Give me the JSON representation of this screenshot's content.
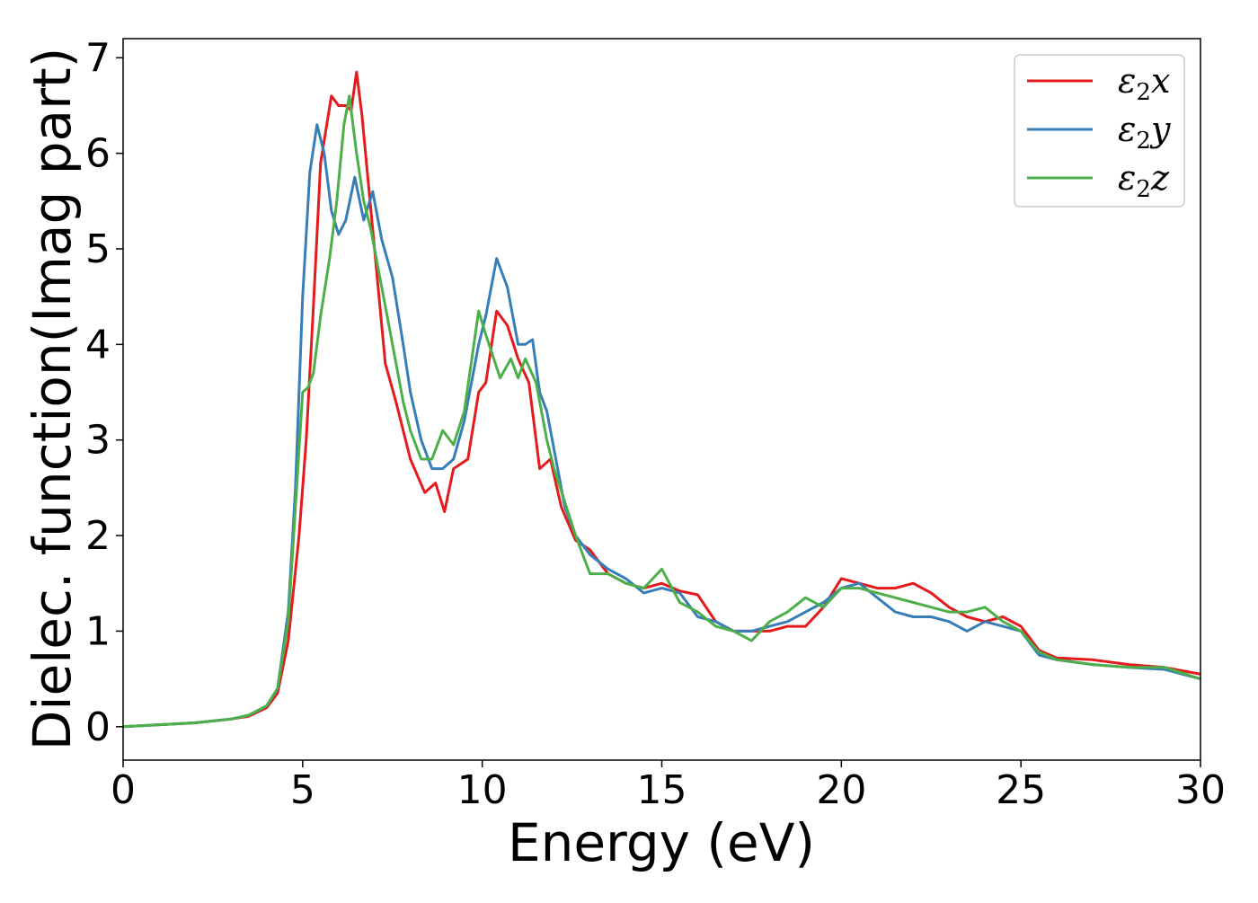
{
  "chart_data": {
    "type": "line",
    "title": "",
    "xlabel": "Energy (eV)",
    "ylabel": "Dielec. function(Imag part)",
    "xlim": [
      0,
      30
    ],
    "ylim": [
      -0.35,
      7.2
    ],
    "xticks": [
      0,
      5,
      10,
      15,
      20,
      25,
      30
    ],
    "xtick_labels": [
      "0",
      "5",
      "10",
      "15",
      "20",
      "25",
      "30"
    ],
    "yticks": [
      0,
      1,
      2,
      3,
      4,
      5,
      6,
      7
    ],
    "ytick_labels": [
      "0",
      "1",
      "2",
      "3",
      "4",
      "5",
      "6",
      "7"
    ],
    "grid": false,
    "legend_position": "top-right",
    "series": [
      {
        "name": "ε₂x",
        "legend_base": "ε",
        "legend_sub": "2",
        "legend_suffix": "x",
        "color": "#e41a1c",
        "x": [
          0,
          1,
          2,
          3,
          3.5,
          4,
          4.3,
          4.6,
          4.9,
          5.1,
          5.3,
          5.5,
          5.8,
          6.0,
          6.2,
          6.35,
          6.5,
          6.65,
          6.8,
          7.0,
          7.3,
          7.6,
          8.0,
          8.4,
          8.7,
          8.95,
          9.2,
          9.6,
          9.9,
          10.1,
          10.4,
          10.7,
          11.0,
          11.3,
          11.6,
          11.9,
          12.2,
          12.6,
          13.0,
          13.5,
          14.0,
          14.5,
          15.0,
          15.5,
          16.0,
          16.5,
          17.0,
          17.5,
          18.0,
          18.5,
          19.0,
          19.5,
          20.0,
          20.5,
          21.0,
          21.5,
          22.0,
          22.5,
          23.0,
          23.5,
          24.0,
          24.5,
          25.0,
          25.5,
          26.0,
          27.0,
          28.0,
          29.0,
          30.0
        ],
        "y": [
          0.0,
          0.02,
          0.04,
          0.08,
          0.11,
          0.2,
          0.35,
          0.9,
          2.0,
          3.0,
          4.4,
          5.9,
          6.6,
          6.5,
          6.5,
          6.45,
          6.85,
          6.4,
          5.8,
          5.0,
          3.8,
          3.4,
          2.8,
          2.45,
          2.55,
          2.25,
          2.7,
          2.8,
          3.5,
          3.6,
          4.35,
          4.2,
          3.85,
          3.6,
          2.7,
          2.8,
          2.3,
          1.95,
          1.85,
          1.6,
          1.5,
          1.45,
          1.5,
          1.42,
          1.38,
          1.1,
          1.0,
          1.0,
          1.0,
          1.05,
          1.05,
          1.25,
          1.55,
          1.5,
          1.45,
          1.45,
          1.5,
          1.4,
          1.25,
          1.15,
          1.1,
          1.15,
          1.05,
          0.8,
          0.72,
          0.7,
          0.65,
          0.62,
          0.55
        ]
      },
      {
        "name": "ε₂y",
        "legend_base": "ε",
        "legend_sub": "2",
        "legend_suffix": "y",
        "color": "#377eb8",
        "x": [
          0,
          1,
          2,
          3,
          3.5,
          4,
          4.3,
          4.6,
          4.8,
          5.0,
          5.2,
          5.4,
          5.6,
          5.8,
          6.0,
          6.2,
          6.45,
          6.7,
          6.95,
          7.2,
          7.5,
          7.8,
          8.0,
          8.3,
          8.6,
          8.9,
          9.2,
          9.5,
          9.9,
          10.1,
          10.4,
          10.7,
          11.0,
          11.2,
          11.4,
          11.6,
          11.8,
          12.0,
          12.3,
          12.6,
          13.0,
          13.5,
          14.0,
          14.5,
          15.0,
          15.5,
          16.0,
          16.5,
          17.0,
          17.5,
          18.0,
          18.5,
          19.0,
          19.5,
          20.0,
          20.5,
          21.0,
          21.5,
          22.0,
          22.5,
          23.0,
          23.5,
          24.0,
          24.5,
          25.0,
          25.5,
          26.0,
          27.0,
          28.0,
          29.0,
          30.0
        ],
        "y": [
          0.0,
          0.02,
          0.04,
          0.08,
          0.12,
          0.22,
          0.4,
          1.2,
          2.5,
          4.5,
          5.8,
          6.3,
          6.0,
          5.4,
          5.15,
          5.3,
          5.75,
          5.3,
          5.6,
          5.1,
          4.7,
          4.0,
          3.5,
          3.0,
          2.7,
          2.7,
          2.8,
          3.2,
          4.0,
          4.3,
          4.9,
          4.6,
          4.0,
          4.0,
          4.05,
          3.5,
          3.3,
          2.9,
          2.3,
          2.0,
          1.8,
          1.65,
          1.55,
          1.4,
          1.45,
          1.4,
          1.15,
          1.1,
          1.0,
          1.0,
          1.05,
          1.1,
          1.2,
          1.3,
          1.45,
          1.5,
          1.35,
          1.2,
          1.15,
          1.15,
          1.1,
          1.0,
          1.1,
          1.05,
          1.0,
          0.75,
          0.7,
          0.65,
          0.62,
          0.6,
          0.5
        ]
      },
      {
        "name": "ε₂z",
        "legend_base": "ε",
        "legend_sub": "2",
        "legend_suffix": "z",
        "color": "#4daf4a",
        "x": [
          0,
          1,
          2,
          3,
          3.5,
          4,
          4.3,
          4.6,
          4.8,
          5.0,
          5.15,
          5.3,
          5.5,
          5.75,
          5.95,
          6.15,
          6.3,
          6.5,
          6.7,
          6.9,
          7.2,
          7.5,
          7.8,
          8.0,
          8.3,
          8.6,
          8.9,
          9.2,
          9.5,
          9.9,
          10.1,
          10.5,
          10.8,
          11.0,
          11.2,
          11.5,
          11.8,
          12.0,
          12.3,
          12.6,
          13.0,
          13.5,
          14.0,
          14.5,
          15.0,
          15.5,
          16.0,
          16.5,
          17.0,
          17.5,
          18.0,
          18.5,
          19.0,
          19.5,
          20.0,
          20.5,
          21.0,
          21.5,
          22.0,
          22.5,
          23.0,
          23.5,
          24.0,
          24.5,
          25.0,
          25.5,
          26.0,
          27.0,
          28.0,
          29.0,
          30.0
        ],
        "y": [
          0.0,
          0.02,
          0.04,
          0.08,
          0.12,
          0.22,
          0.4,
          1.1,
          2.3,
          3.5,
          3.55,
          3.7,
          4.3,
          4.9,
          5.5,
          6.3,
          6.6,
          6.0,
          5.5,
          5.2,
          4.6,
          4.0,
          3.4,
          3.1,
          2.8,
          2.8,
          3.1,
          2.95,
          3.3,
          4.35,
          4.1,
          3.65,
          3.85,
          3.65,
          3.85,
          3.6,
          3.0,
          2.7,
          2.35,
          2.0,
          1.6,
          1.6,
          1.5,
          1.45,
          1.65,
          1.3,
          1.2,
          1.05,
          1.0,
          0.9,
          1.1,
          1.2,
          1.35,
          1.25,
          1.45,
          1.45,
          1.4,
          1.35,
          1.3,
          1.25,
          1.2,
          1.2,
          1.25,
          1.1,
          1.0,
          0.78,
          0.7,
          0.65,
          0.62,
          0.62,
          0.5
        ]
      }
    ]
  }
}
